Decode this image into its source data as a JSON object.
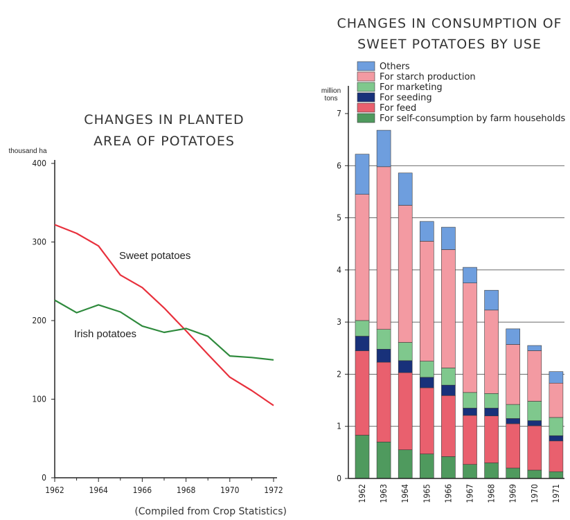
{
  "chart_data": [
    {
      "type": "line",
      "title": "CHANGES IN PLANTED\nAREA OF POTATOES",
      "ylabel": "thousand ha",
      "ylim": [
        0,
        400
      ],
      "yticks": [
        "0",
        "100",
        "200",
        "300",
        "400"
      ],
      "xlim": [
        1962,
        1972
      ],
      "xticks": [
        "1962",
        "1964",
        "1966",
        "1968",
        "1970",
        "1972"
      ],
      "grid": false,
      "series": [
        {
          "name": "Sweet potatoes",
          "color": "#e8303c",
          "x": [
            1962,
            1963,
            1964,
            1965,
            1966,
            1967,
            1968,
            1969,
            1970,
            1971,
            1972
          ],
          "y": [
            322,
            311,
            295,
            258,
            242,
            216,
            187,
            157,
            128,
            111,
            92
          ]
        },
        {
          "name": "Irish potatoes",
          "color": "#2e8a3c",
          "x": [
            1962,
            1963,
            1964,
            1965,
            1966,
            1967,
            1968,
            1969,
            1970,
            1971,
            1972
          ],
          "y": [
            226,
            210,
            220,
            211,
            193,
            185,
            190,
            180,
            155,
            153,
            150
          ]
        }
      ],
      "source": "(Compiled from Crop Statistics)"
    },
    {
      "type": "bar",
      "stacked": true,
      "title": "CHANGES IN CONSUMPTION OF\nSWEET POTATOES BY USE",
      "ylabel_line1": "million",
      "ylabel_line2": "tons",
      "ylim": [
        0,
        7
      ],
      "yticks": [
        "0",
        "1",
        "2",
        "3",
        "4",
        "5",
        "6",
        "7"
      ],
      "grid": true,
      "legend_position": "top",
      "categories": [
        "1962",
        "1963",
        "1964",
        "1965",
        "1966",
        "1967",
        "1968",
        "1969",
        "1970",
        "1971"
      ],
      "series": [
        {
          "name": "For self-consumption by farm households",
          "color": "#4f9a5e",
          "values": [
            0.83,
            0.7,
            0.55,
            0.47,
            0.42,
            0.27,
            0.3,
            0.2,
            0.16,
            0.13
          ]
        },
        {
          "name": "For feed",
          "color": "#e9606e",
          "values": [
            1.62,
            1.53,
            1.48,
            1.27,
            1.17,
            0.94,
            0.9,
            0.85,
            0.85,
            0.59
          ]
        },
        {
          "name": "For seeding",
          "color": "#18317a",
          "values": [
            0.28,
            0.25,
            0.23,
            0.2,
            0.2,
            0.14,
            0.15,
            0.1,
            0.1,
            0.1
          ]
        },
        {
          "name": "For marketing",
          "color": "#7fc88d",
          "values": [
            0.3,
            0.38,
            0.35,
            0.31,
            0.33,
            0.3,
            0.28,
            0.27,
            0.37,
            0.35
          ]
        },
        {
          "name": "For starch production",
          "color": "#f39aa2",
          "values": [
            2.42,
            3.12,
            2.63,
            2.3,
            2.27,
            2.1,
            1.6,
            1.15,
            0.97,
            0.66
          ]
        },
        {
          "name": "Others",
          "color": "#6e9ede",
          "values": [
            0.77,
            0.7,
            0.62,
            0.38,
            0.43,
            0.3,
            0.38,
            0.3,
            0.1,
            0.22
          ]
        }
      ],
      "legend_order": [
        "Others",
        "For starch production",
        "For marketing",
        "For seeding",
        "For feed",
        "For self-consumption by farm households"
      ],
      "source": "(Compiled from Crop Statistics)"
    }
  ]
}
